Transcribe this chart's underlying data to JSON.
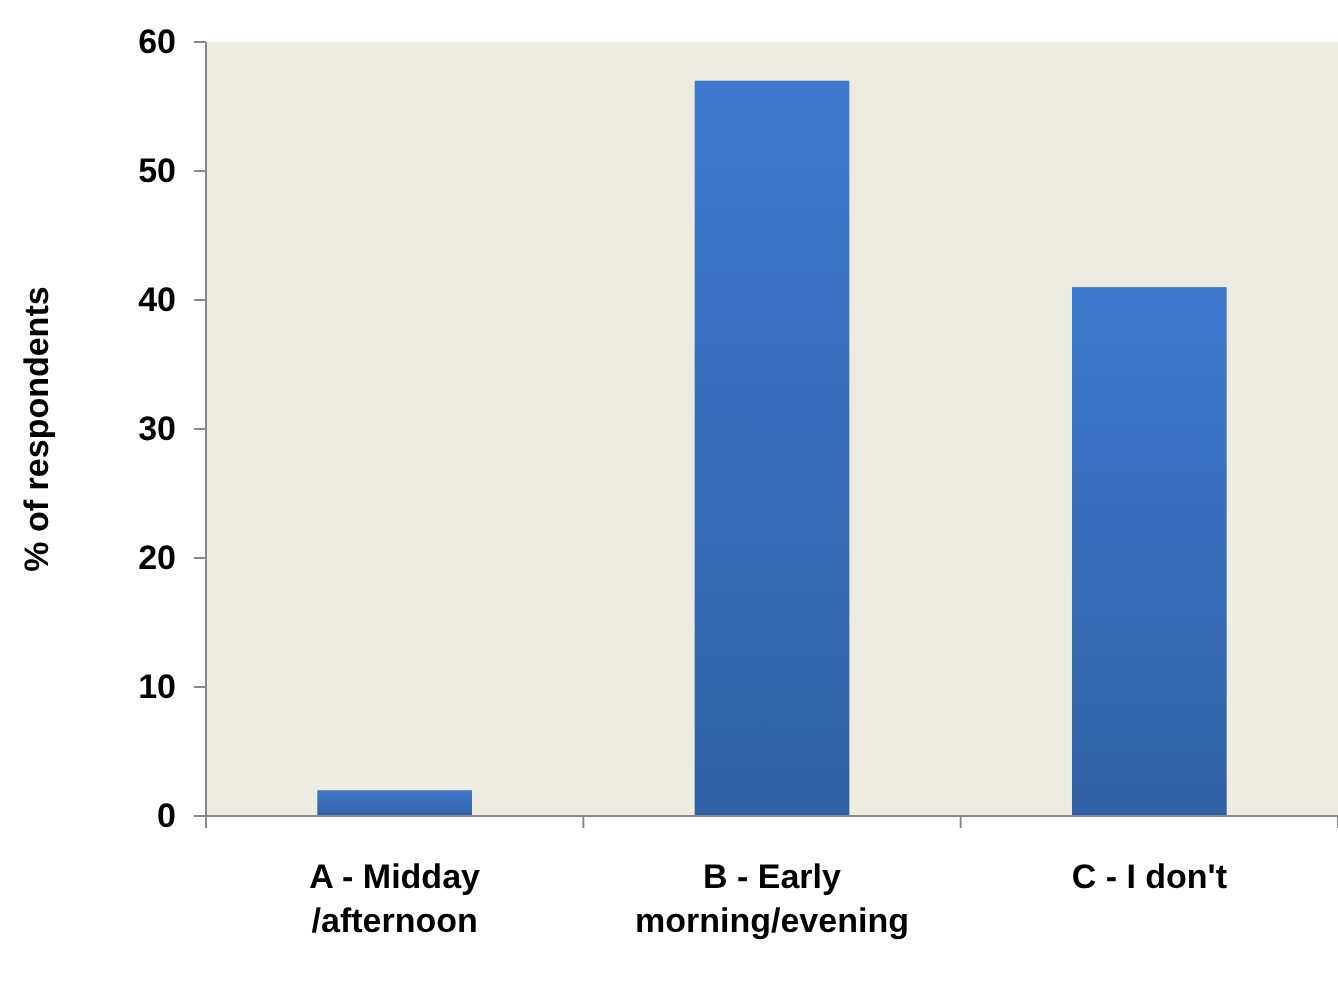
{
  "chart_data": {
    "type": "bar",
    "ylabel": "% of respondents",
    "categories": [
      "A - Midday /afternoon",
      "B - Early morning/evening",
      "C - I don't"
    ],
    "values": [
      2,
      57,
      41
    ],
    "color": "#3a74c4",
    "ylim": [
      0,
      60
    ],
    "yticks": [
      0,
      10,
      20,
      30,
      40,
      50,
      60
    ],
    "grid": false
  }
}
